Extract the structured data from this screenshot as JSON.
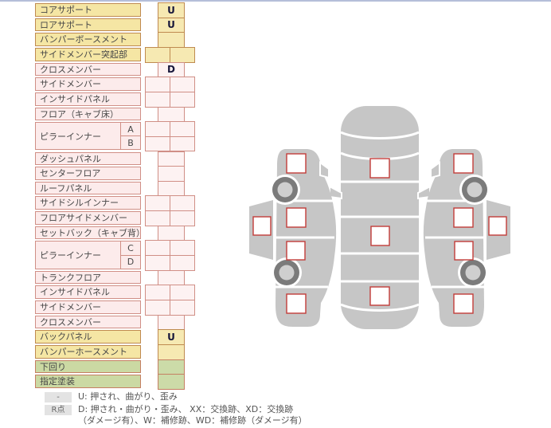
{
  "colors": {
    "top_line": "#b5bed9",
    "yellow_bg": "#f5e6a4",
    "yellow_cell": "#f6e9b2",
    "yellow_border": "#bf8a50",
    "pink_bg": "#fcebeb",
    "pink_cell": "#fdf2f2",
    "pink_border": "#d08f86",
    "green_bg": "#cbd9a3",
    "green_cell": "#ccdba8",
    "green_border": "#c57f63",
    "marker_border": "#c23c39",
    "car_gray": "#c6c6c6",
    "wheel_dark": "#7b7b7b",
    "wheel_hub": "#cfcfcf",
    "legend_key_bg": "#e3e3e3",
    "legend_text": "#555555",
    "text": "#474747",
    "value_text": "#16163a"
  },
  "table": {
    "rows": [
      {
        "label": "コアサポート",
        "tone": "yellow",
        "cell": "single",
        "value": "U"
      },
      {
        "label": "ロアサポート",
        "tone": "yellow",
        "cell": "single",
        "value": "U"
      },
      {
        "label": "バンパーボースメント",
        "tone": "yellow",
        "cell": "single",
        "value": ""
      },
      {
        "label": "サイドメンバー突起部",
        "tone": "yellow",
        "cell": "double",
        "values": [
          "",
          ""
        ]
      },
      {
        "label": "クロスメンバー",
        "tone": "pink",
        "cell": "single",
        "value": "D"
      },
      {
        "label": "サイドメンバー",
        "tone": "pink",
        "cell": "double",
        "values": [
          "",
          ""
        ]
      },
      {
        "label": "インサイドパネル",
        "tone": "pink",
        "cell": "double",
        "values": [
          "",
          ""
        ]
      },
      {
        "label": "フロア（キャブ床）",
        "tone": "pink",
        "cell": "single",
        "value": ""
      },
      {
        "label": "ピラーインナー",
        "tone": "pink",
        "group": [
          {
            "sub": "A",
            "cell": "double",
            "values": [
              "",
              ""
            ]
          },
          {
            "sub": "B",
            "cell": "double",
            "values": [
              "",
              ""
            ]
          }
        ]
      },
      {
        "label": "ダッシュパネル",
        "tone": "pink",
        "cell": "single",
        "value": ""
      },
      {
        "label": "センターフロア",
        "tone": "pink",
        "cell": "single",
        "value": ""
      },
      {
        "label": "ルーフパネル",
        "tone": "pink",
        "cell": "single",
        "value": ""
      },
      {
        "label": "サイドシルインナー",
        "tone": "pink",
        "cell": "double",
        "values": [
          "",
          ""
        ]
      },
      {
        "label": "フロアサイドメンバー",
        "tone": "pink",
        "cell": "double",
        "values": [
          "",
          ""
        ]
      },
      {
        "label": "セットバック（キャブ背）",
        "tone": "pink",
        "cell": "single",
        "value": ""
      },
      {
        "label": "ピラーインナー",
        "tone": "pink",
        "group": [
          {
            "sub": "C",
            "cell": "double",
            "values": [
              "",
              ""
            ]
          },
          {
            "sub": "D",
            "cell": "double",
            "values": [
              "",
              ""
            ]
          }
        ]
      },
      {
        "label": "トランクフロア",
        "tone": "pink",
        "cell": "single",
        "value": ""
      },
      {
        "label": "インサイドパネル",
        "tone": "pink",
        "cell": "double",
        "values": [
          "",
          ""
        ]
      },
      {
        "label": "サイドメンバー",
        "tone": "pink",
        "cell": "double",
        "values": [
          "",
          ""
        ]
      },
      {
        "label": "クロスメンバー",
        "tone": "pink",
        "cell": "single",
        "value": ""
      },
      {
        "label": "バックパネル",
        "tone": "yellow",
        "cell": "single",
        "value": "U"
      },
      {
        "label": "バンパーホースメント",
        "tone": "yellow",
        "cell": "single",
        "value": ""
      },
      {
        "label": "下回り",
        "tone": "green",
        "cell": "single",
        "value": ""
      },
      {
        "label": "指定塗装",
        "tone": "green",
        "cell": "single",
        "value": ""
      }
    ]
  },
  "legend": {
    "rows": [
      {
        "key": "-",
        "text": "U: 押され、曲がり、歪み"
      },
      {
        "key": "R点",
        "text": "D: 押され・曲がり・歪み、 XX：交換跡、XD：交換跡",
        "text2": "（ダメージ有）、W：補修跡、WD：補修跡（ダメージ有）"
      }
    ]
  }
}
